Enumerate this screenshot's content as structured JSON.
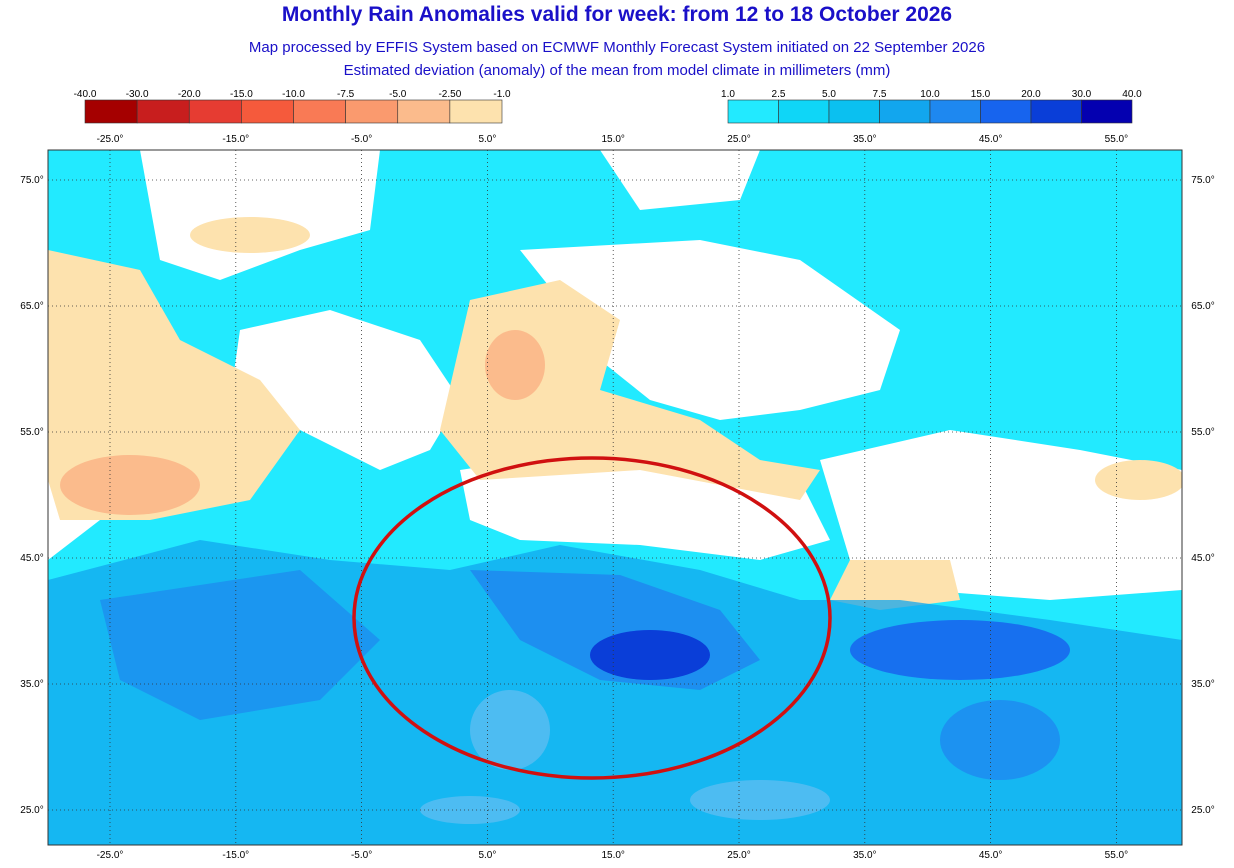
{
  "header": {
    "title": "Monthly Rain Anomalies valid for week: from 12 to 18 October 2026",
    "subtitle": "Map processed by EFFIS System based on ECMWF Monthly Forecast System initiated on 22 September 2026",
    "description": "Estimated deviation (anomaly) of the mean from model climate in millimeters (mm)"
  },
  "legend_negative": {
    "labels": [
      "-40.0",
      "-30.0",
      "-20.0",
      "-15.0",
      "-10.0",
      "-7.5",
      "-5.0",
      "-2.50",
      "-1.0"
    ],
    "colors": [
      "#a50000",
      "#c81e1e",
      "#e63c32",
      "#f55a3c",
      "#f97a55",
      "#fa9a6e",
      "#fbbb8c",
      "#fde2ae"
    ]
  },
  "legend_positive": {
    "labels": [
      "1.0",
      "2.5",
      "5.0",
      "7.5",
      "10.0",
      "15.0",
      "20.0",
      "30.0",
      "40.0"
    ],
    "colors": [
      "#22eaff",
      "#0fd6f7",
      "#0bc0f0",
      "#12a6ee",
      "#1e88f0",
      "#1764ee",
      "#0a3ed8",
      "#0400b0"
    ]
  },
  "map": {
    "lon_labels": [
      "-25.0°",
      "-15.0°",
      "-5.0°",
      "5.0°",
      "15.0°",
      "25.0°",
      "35.0°",
      "45.0°",
      "55.0°"
    ],
    "lat_labels": [
      "75.0°",
      "65.0°",
      "55.0°",
      "45.0°",
      "35.0°",
      "25.0°"
    ]
  }
}
